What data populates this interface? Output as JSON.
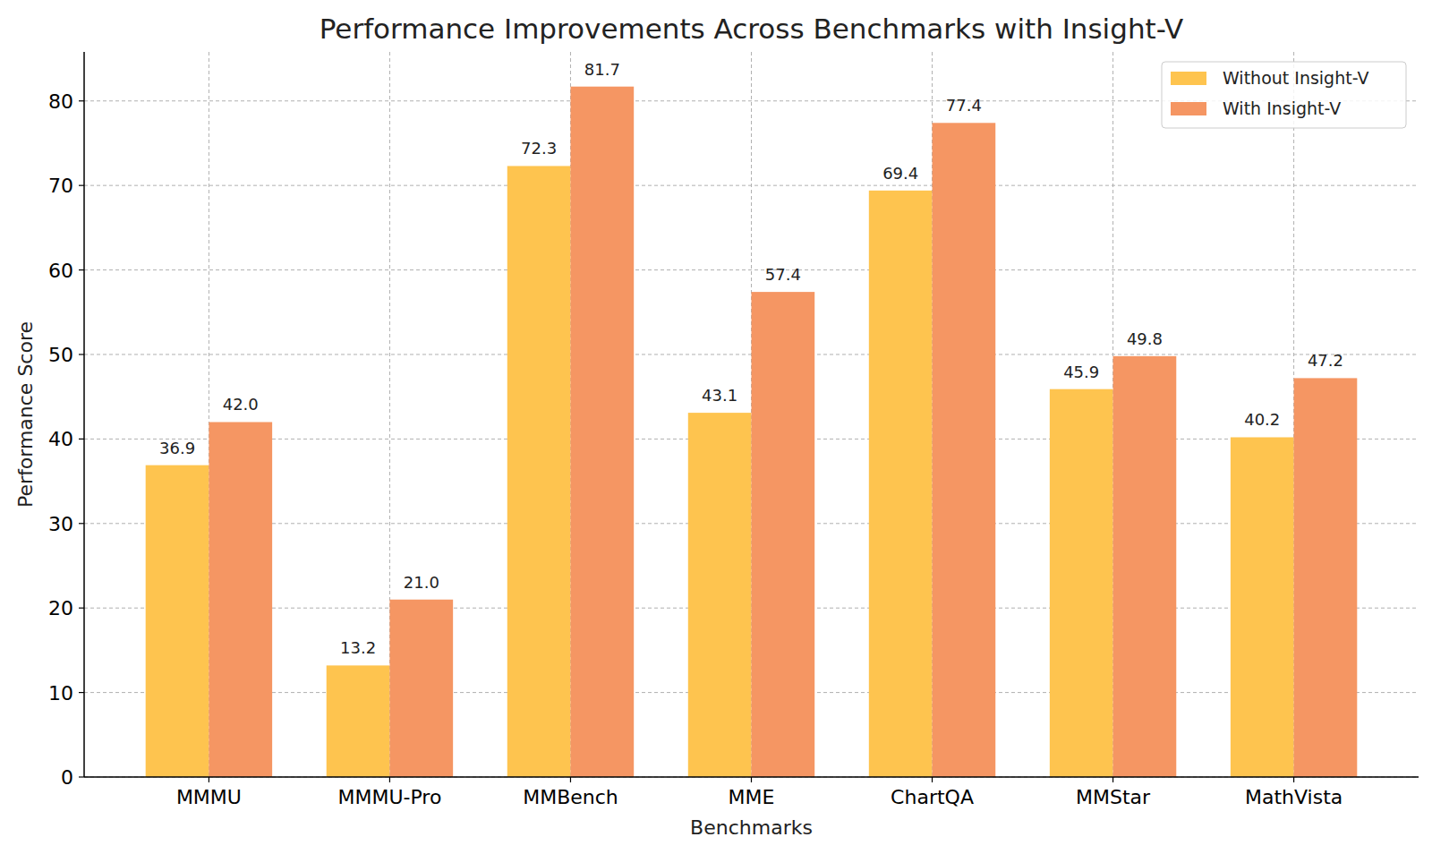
{
  "chart_data": {
    "type": "bar",
    "title": "Performance Improvements Across Benchmarks with Insight-V",
    "x_label": "Benchmarks",
    "y_label": "Performance Score",
    "categories": [
      "MMMU",
      "MMMU-Pro",
      "MMBench",
      "MME",
      "ChartQA",
      "MMStar",
      "MathVista"
    ],
    "series": [
      {
        "name": "Without Insight-V",
        "color": "#fec44f",
        "values": [
          36.9,
          13.2,
          72.3,
          43.1,
          69.4,
          45.9,
          40.2
        ],
        "value_labels": [
          "36.9",
          "13.2",
          "72.3",
          "43.1",
          "69.4",
          "45.9",
          "40.2"
        ]
      },
      {
        "name": "With Insight-V",
        "color": "#f59663",
        "values": [
          42.0,
          21.0,
          81.7,
          57.4,
          77.4,
          49.8,
          47.2
        ],
        "value_labels": [
          "42.0",
          "21.0",
          "81.7",
          "57.4",
          "77.4",
          "49.8",
          "47.2"
        ]
      }
    ],
    "ylim": [
      0,
      85.8
    ],
    "yticks": [
      0,
      10,
      20,
      30,
      40,
      50,
      60,
      70,
      80
    ],
    "grid": true,
    "legend": "upper right",
    "data_labels": true
  }
}
